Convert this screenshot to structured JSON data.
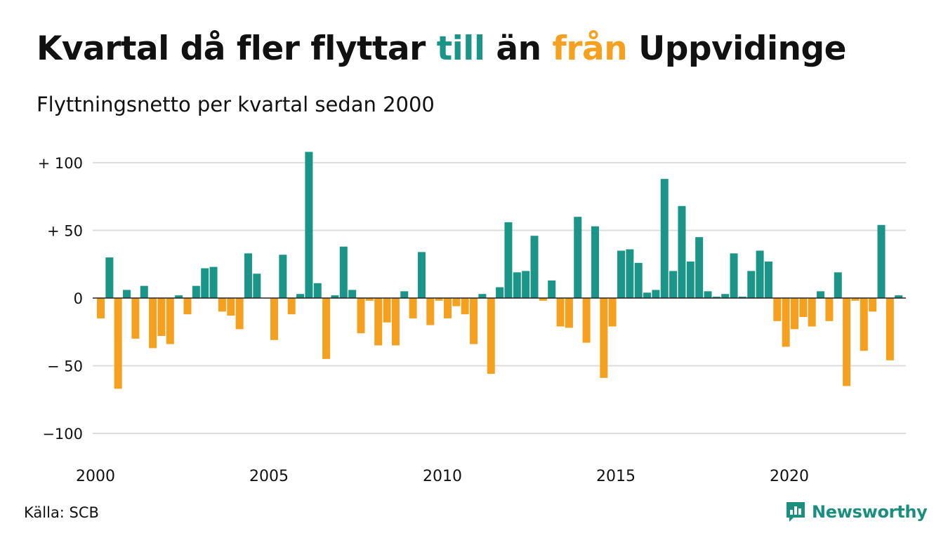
{
  "title": {
    "part1": "Kvartal då fler flyttar ",
    "part2": "till",
    "part3": " än ",
    "part4": "från",
    "part5": " Uppvidinge"
  },
  "subtitle": "Flyttningsnetto per kvartal sedan 2000",
  "source": "Källa: SCB",
  "brand": "Newsworthy",
  "colors": {
    "positive": "#1a9587",
    "negative": "#f5a01f",
    "grid": "#dddddd",
    "brand": "#1a8f80"
  },
  "chart_data": {
    "type": "bar",
    "start_year": 2000,
    "ylim": [
      -110,
      110
    ],
    "yticks": [
      {
        "value": 100,
        "label": "+ 100"
      },
      {
        "value": 50,
        "label": "+  50"
      },
      {
        "value": 0,
        "label": "0"
      },
      {
        "value": -50,
        "label": "− 50"
      },
      {
        "value": -100,
        "label": "−100"
      }
    ],
    "xticks": [
      "2000",
      "2005",
      "2010",
      "2015",
      "2020"
    ],
    "values": [
      -15,
      30,
      -67,
      6,
      -30,
      9,
      -37,
      -28,
      -34,
      2,
      -12,
      9,
      22,
      23,
      -10,
      -13,
      -23,
      33,
      18,
      0,
      -31,
      32,
      -12,
      3,
      108,
      11,
      -45,
      2,
      38,
      6,
      -26,
      -2,
      -35,
      -18,
      -35,
      5,
      -15,
      34,
      -20,
      -2,
      -15,
      -6,
      -12,
      -34,
      3,
      -56,
      8,
      56,
      19,
      20,
      46,
      -2,
      13,
      -21,
      -22,
      60,
      -33,
      53,
      -59,
      -21,
      35,
      36,
      26,
      4,
      6,
      88,
      20,
      68,
      27,
      45,
      5,
      1,
      3,
      33,
      1,
      20,
      35,
      27,
      -17,
      -36,
      -23,
      -14,
      -21,
      5,
      -17,
      19,
      -65,
      -2,
      -39,
      -10,
      54,
      -46,
      2
    ]
  }
}
